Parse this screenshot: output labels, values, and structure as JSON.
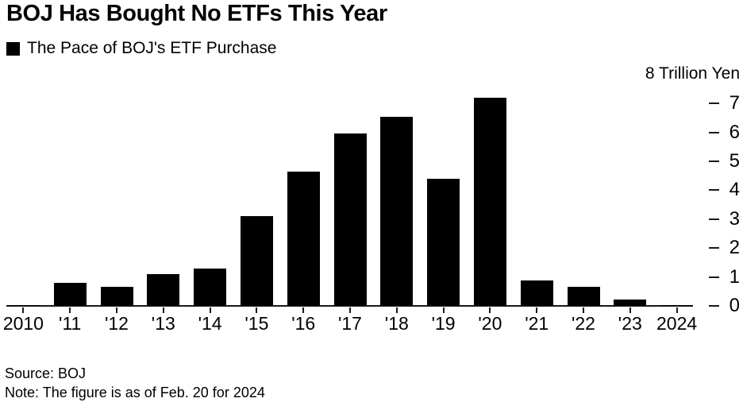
{
  "header": {
    "title": "BOJ Has Bought No ETFs This Year",
    "legend": {
      "marker_color": "#000000",
      "label": "The Pace of BOJ's ETF Purchase"
    }
  },
  "chart_data": {
    "type": "bar",
    "title": "BOJ Has Bought No ETFs This Year",
    "legend_entries": [
      "The Pace of BOJ's ETF Purchase"
    ],
    "legend_position": "top-left",
    "categories": [
      "2010",
      "'11",
      "'12",
      "'13",
      "'14",
      "'15",
      "'16",
      "'17",
      "'18",
      "'19",
      "'20",
      "'21",
      "'22",
      "'23",
      "2024"
    ],
    "values": [
      0.04,
      0.8,
      0.65,
      1.1,
      1.3,
      3.1,
      4.65,
      5.95,
      6.55,
      4.4,
      7.2,
      0.88,
      0.65,
      0.22,
      0.01
    ],
    "unit_label": "8 Trillion Yen",
    "ylabel": "Trillion Yen",
    "yticks": [
      0,
      1,
      2,
      3,
      4,
      5,
      6,
      7
    ],
    "ylim": [
      0,
      8
    ],
    "axis_side": "right",
    "grid": false,
    "bar_color": "#000000",
    "background_color": "#ffffff"
  },
  "footer": {
    "source": "Source: BOJ",
    "note": "Note: The figure is as of Feb. 20 for 2024"
  }
}
